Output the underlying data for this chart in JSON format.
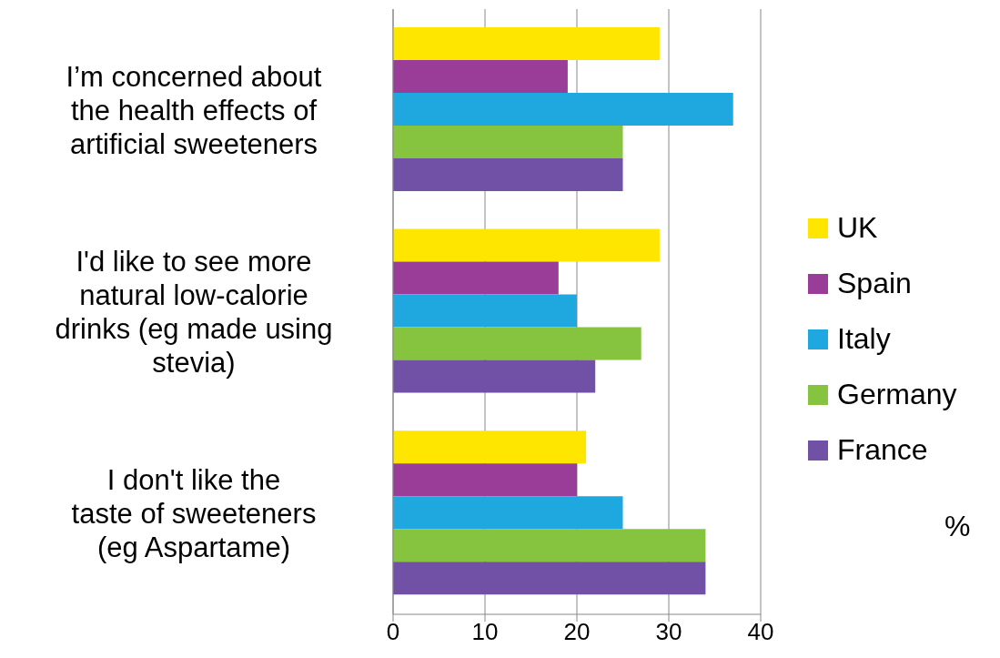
{
  "chart_data": {
    "type": "bar",
    "orientation": "horizontal",
    "annotations": [
      "%"
    ],
    "categories": [
      "I’m concerned about the health effects of artificial sweeteners",
      "I'd like to see more natural low-calorie drinks (eg made using stevia)",
      "I don't like the taste of sweeteners (eg Aspartame)"
    ],
    "series": [
      {
        "name": "UK",
        "color": "#ffe600",
        "values": [
          29,
          29,
          21
        ]
      },
      {
        "name": "Spain",
        "color": "#993d99",
        "values": [
          19,
          18,
          20
        ]
      },
      {
        "name": "Italy",
        "color": "#1fa8e0",
        "values": [
          37,
          20,
          25
        ]
      },
      {
        "name": "Germany",
        "color": "#86c440",
        "values": [
          25,
          27,
          34
        ]
      },
      {
        "name": "France",
        "color": "#7051a6",
        "values": [
          25,
          22,
          34
        ]
      }
    ],
    "xlim": [
      0,
      40
    ],
    "xticks": [
      0,
      10,
      20,
      30,
      40
    ],
    "grid": "x",
    "legend": "right"
  }
}
